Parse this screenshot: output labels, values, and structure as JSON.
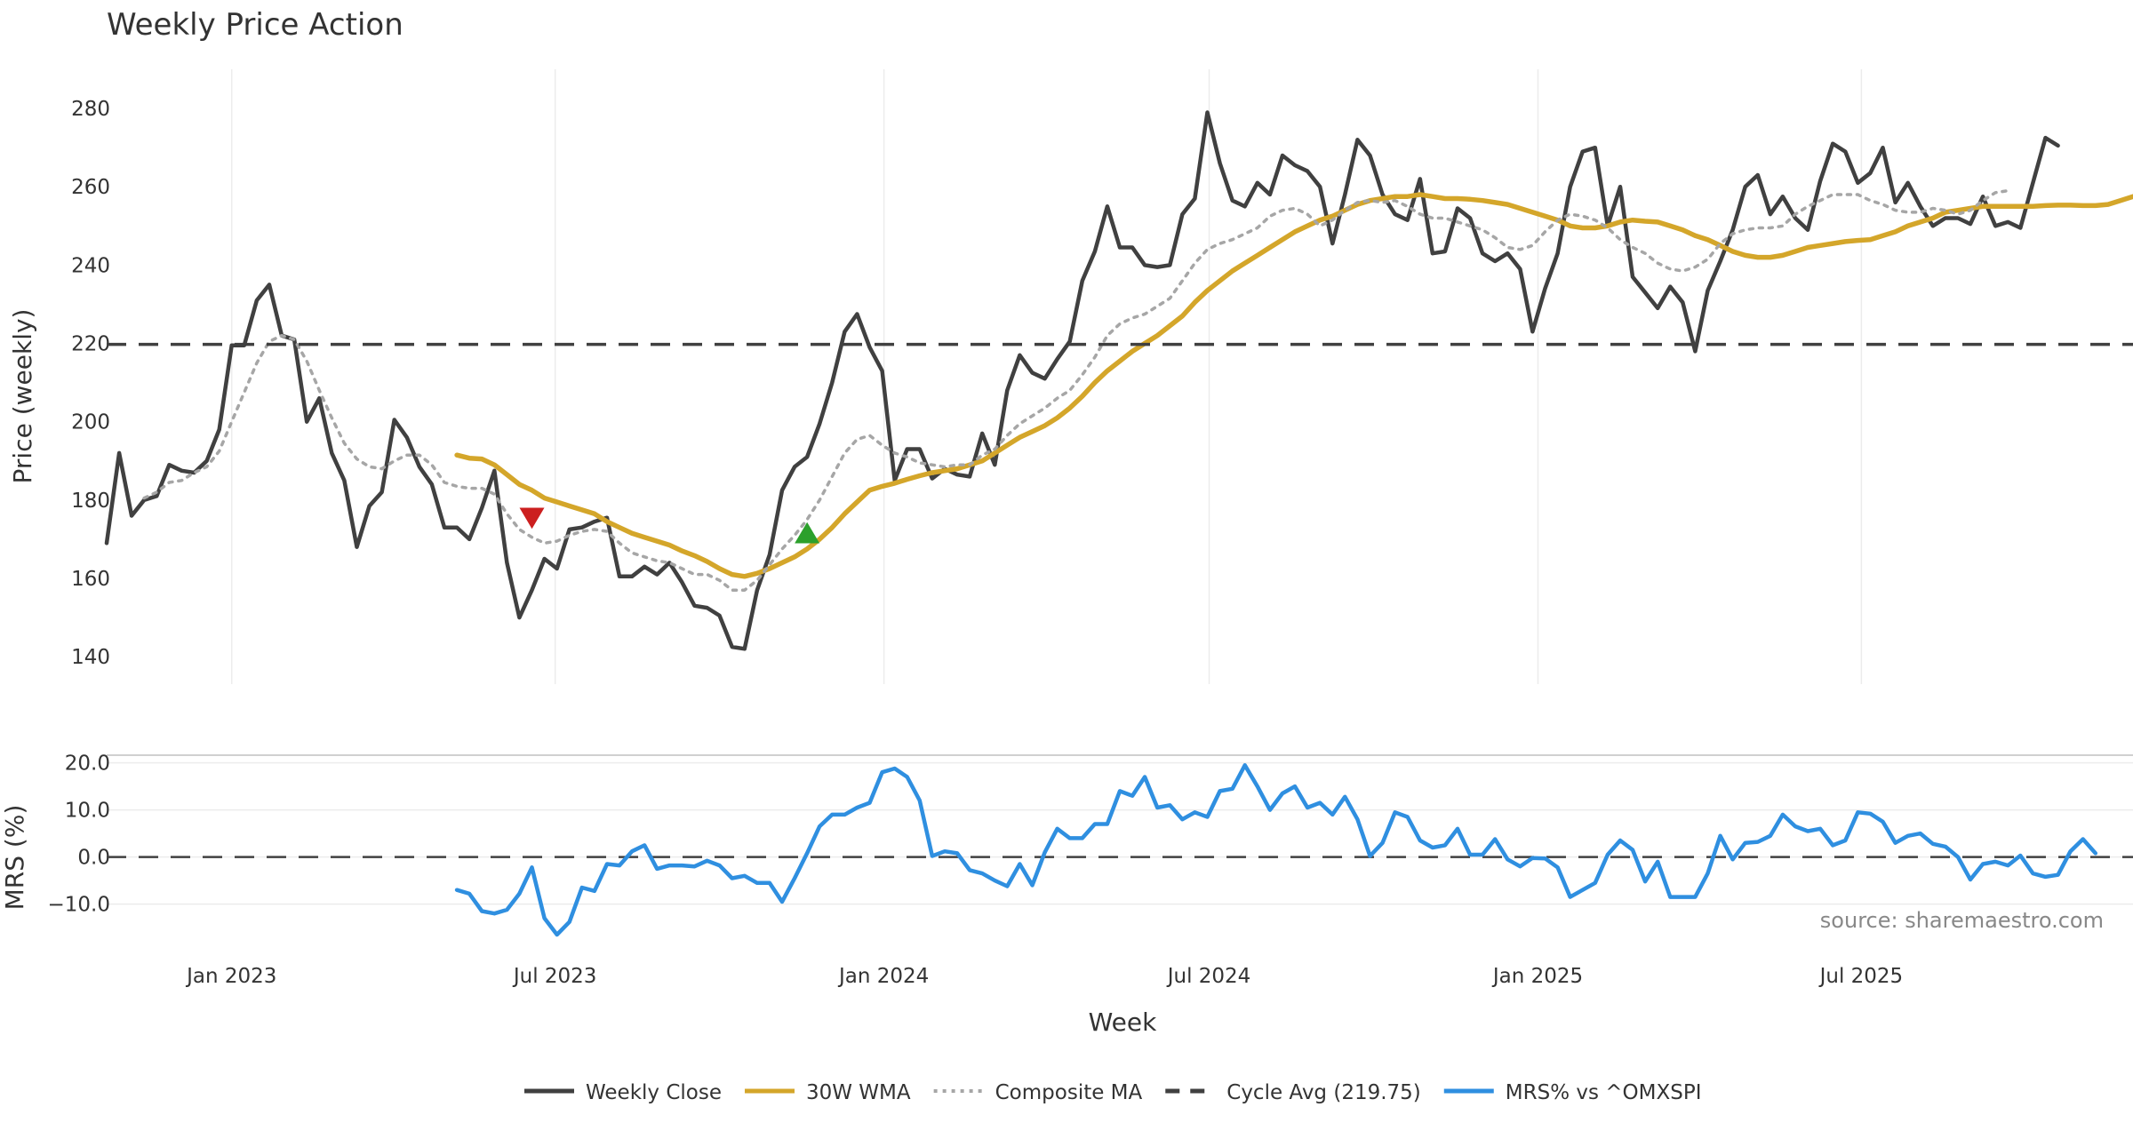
{
  "chart_data": {
    "type": "line",
    "title": "Weekly Price Action",
    "xlabel": "Week",
    "source": "source: sharemaestro.com",
    "x_tick_labels": [
      "Jan 2023",
      "Jul 2023",
      "Jan 2024",
      "Jul 2024",
      "Jan 2025",
      "Jul 2025"
    ],
    "x_tick_dates": [
      "2023-01-01",
      "2023-07-01",
      "2024-01-01",
      "2024-07-01",
      "2025-01-01",
      "2025-07-01"
    ],
    "x_range": [
      "2022-10-23",
      "2025-11-30"
    ],
    "grid": true,
    "legend_position": "bottom",
    "panels": [
      {
        "name": "price",
        "ylabel": "Price (weekly)",
        "ylim": [
          133,
          290
        ],
        "yticks": [
          140,
          160,
          180,
          200,
          220,
          240,
          260,
          280
        ],
        "ytick_labels": [
          "140",
          "160",
          "180",
          "200",
          "220",
          "240",
          "260",
          "280"
        ]
      },
      {
        "name": "mrs",
        "ylabel": "MRS (%)",
        "ylim": [
          -18,
          22
        ],
        "yticks": [
          -10,
          0,
          10,
          20
        ],
        "ytick_labels": [
          "−10.0",
          "0.0",
          "10.0",
          "20.0"
        ]
      }
    ],
    "series": [
      {
        "name": "Weekly Close",
        "panel": "price",
        "color": "#404040",
        "style": "solid",
        "x_start": "2022-10-23",
        "values": [
          169,
          192,
          176,
          180,
          181,
          189,
          187.5,
          187,
          190,
          198,
          219.5,
          219.5,
          231,
          235,
          222,
          221,
          200,
          206,
          192,
          185,
          168,
          178.5,
          182,
          200.5,
          196,
          188.5,
          184,
          173,
          173,
          170,
          178,
          187.5,
          164,
          150,
          157,
          165,
          162.5,
          172.5,
          173,
          174.5,
          175.5,
          160.5,
          160.5,
          163,
          161,
          164,
          159,
          153,
          152.5,
          150.5,
          142.5,
          142,
          157,
          166,
          182.5,
          188.5,
          191,
          199.5,
          210,
          223,
          227.5,
          219,
          213,
          185,
          193,
          193,
          185.5,
          188,
          186.5,
          186,
          197,
          189,
          208,
          217,
          212.5,
          211,
          216,
          220.5,
          236,
          243.5,
          255,
          244.5,
          244.5,
          240,
          239.5,
          240,
          253,
          257,
          279,
          266,
          256.5,
          255,
          261,
          258,
          268,
          265.5,
          264,
          260,
          245.5,
          258,
          272,
          268,
          258,
          253,
          251.5,
          262,
          243,
          243.5,
          254.5,
          252,
          243,
          241,
          243,
          239,
          223,
          234,
          243,
          260,
          269,
          270,
          250,
          260,
          237,
          233,
          229,
          234.5,
          230.5,
          218,
          233.5,
          241,
          249,
          260,
          263,
          253,
          257.5,
          252,
          249,
          261.5,
          271,
          269,
          261,
          263.5,
          270,
          256,
          261,
          255,
          250,
          252,
          252,
          250.5,
          257.5,
          250,
          251,
          249.5,
          261,
          272.5,
          270.5
        ]
      },
      {
        "name": "30W WMA",
        "panel": "price",
        "color": "#d4a62a",
        "style": "solid",
        "x_start": "2023-05-07",
        "values": [
          191.5,
          190.7,
          190.5,
          189,
          186.5,
          184,
          182.5,
          180.5,
          179.5,
          178.5,
          177.5,
          176.5,
          174.5,
          173,
          171.5,
          170.5,
          169.5,
          168.5,
          167,
          165.8,
          164.3,
          162.5,
          161,
          160.5,
          161.3,
          162.5,
          164,
          165.5,
          167.5,
          170,
          173,
          176.5,
          179.5,
          182.5,
          183.5,
          184.3,
          185.3,
          186.2,
          187,
          187.5,
          188,
          189,
          190,
          192,
          194,
          196,
          197.5,
          199,
          201,
          203.5,
          206.5,
          210,
          213,
          215.5,
          218,
          220,
          222,
          224.5,
          227,
          230.5,
          233.5,
          236,
          238.5,
          240.5,
          242.5,
          244.5,
          246.5,
          248.5,
          250,
          251.5,
          252.5,
          254,
          255.5,
          256.5,
          257,
          257.5,
          257.5,
          258,
          257.5,
          257,
          257,
          256.8,
          256.5,
          256,
          255.5,
          254.5,
          253.5,
          252.5,
          251.5,
          250,
          249.5,
          249.5,
          250,
          251,
          251.5,
          251.2,
          251,
          250,
          249,
          247.5,
          246.5,
          245,
          243.5,
          242.5,
          242,
          242,
          242.5,
          243.5,
          244.5,
          245,
          245.5,
          246,
          246.3,
          246.5,
          247.5,
          248.5,
          250,
          251,
          252,
          253.5,
          254,
          254.5,
          255,
          255,
          255,
          255,
          255,
          255.2,
          255.3,
          255.3,
          255.2,
          255.2,
          255.5,
          256.5,
          257.5,
          258.5
        ]
      },
      {
        "name": "Composite MA",
        "panel": "price",
        "color": "#a6a6a6",
        "style": "dotted",
        "x_start": "2022-10-23",
        "values": [
          null,
          null,
          null,
          180.5,
          182,
          184.5,
          185,
          187,
          188.5,
          192.5,
          200,
          207.5,
          215,
          220.5,
          222,
          221,
          215.5,
          208,
          201,
          194.5,
          190.5,
          188.5,
          188,
          190,
          191.5,
          191.5,
          189,
          184.5,
          183.5,
          183,
          183,
          181.5,
          176.5,
          172.5,
          170.5,
          169,
          169.5,
          171,
          172,
          172.5,
          172,
          169,
          166.5,
          165.5,
          164.5,
          164,
          162.5,
          161,
          161,
          159.5,
          157,
          157,
          159.5,
          163.5,
          167.5,
          171,
          175,
          180,
          186,
          192,
          195.5,
          196.5,
          194,
          192,
          191,
          189.5,
          189,
          188.5,
          189,
          189,
          191.5,
          193,
          196.5,
          199.5,
          201.5,
          203.5,
          206,
          208,
          212,
          216.5,
          222,
          225,
          226.5,
          227.5,
          229.5,
          231.5,
          236,
          240.5,
          244,
          245.5,
          246.5,
          248,
          249.5,
          252.5,
          254,
          254.5,
          253,
          250,
          251.5,
          254,
          256,
          256.5,
          256,
          256.5,
          255,
          253,
          252,
          252,
          251,
          250,
          249,
          247,
          244.5,
          244,
          245,
          248.5,
          251.5,
          253,
          252.5,
          251.5,
          249.5,
          246.5,
          244.5,
          243,
          240.5,
          239,
          238.5,
          239.5,
          241.5,
          245.5,
          248,
          249,
          249.5,
          249.5,
          250,
          253,
          255,
          256.5,
          258,
          258,
          258,
          256.5,
          255.5,
          254,
          253.5,
          253.5,
          254.5,
          254,
          253,
          254,
          256.5,
          258.5,
          259
        ]
      },
      {
        "name": "Cycle Avg (219.75)",
        "panel": "price",
        "color": "#404040",
        "style": "dashed",
        "value": 219.75
      },
      {
        "name": "MRS% vs ^OMXSPI",
        "panel": "mrs",
        "color": "#2f8fe0",
        "style": "solid",
        "x_start": "2023-05-07",
        "values": [
          -7,
          -7.8,
          -11.5,
          -12,
          -11.2,
          -7.8,
          -2.2,
          -13,
          -16.5,
          -13.8,
          -6.5,
          -7.2,
          -1.5,
          -1.8,
          1.2,
          2.5,
          -2.5,
          -1.8,
          -1.8,
          -2,
          -0.8,
          -1.8,
          -4.5,
          -4,
          -5.5,
          -5.5,
          -9.5,
          -4.5,
          0.8,
          6.5,
          9,
          9,
          10.5,
          11.5,
          18,
          18.8,
          17,
          12,
          0.2,
          1.2,
          0.8,
          -2.8,
          -3.5,
          -5,
          -6.2,
          -1.5,
          -6,
          1,
          6,
          4,
          4,
          7,
          7,
          14,
          13,
          17,
          10.5,
          11,
          8,
          9.5,
          8.5,
          14,
          14.5,
          19.5,
          15,
          10,
          13.5,
          15,
          10.5,
          11.5,
          9,
          12.8,
          8,
          0.2,
          3,
          9.5,
          8.5,
          3.5,
          2,
          2.5,
          6,
          0.5,
          0.5,
          3.8,
          -0.5,
          -2,
          -0.2,
          -0.3,
          -2.2,
          -8.5,
          -7,
          -5.5,
          0.5,
          3.5,
          1.5,
          -5.2,
          -1,
          -8.5,
          -8.5,
          -8.5,
          -3.5,
          4.5,
          -0.5,
          3,
          3.2,
          4.5,
          9,
          6.5,
          5.5,
          6,
          2.5,
          3.5,
          9.5,
          9.2,
          7.5,
          3,
          4.5,
          5,
          2.8,
          2.2,
          0,
          -4.8,
          -1.5,
          -1,
          -1.8,
          0.3,
          -3.5,
          -4.2,
          -3.8,
          1.2,
          3.8,
          0.8
        ]
      }
    ],
    "reference_lines": [
      {
        "panel": "mrs",
        "value": 0,
        "style": "dashed",
        "color": "#404040"
      }
    ],
    "markers": [
      {
        "type": "sell",
        "shape": "triangle-down",
        "color": "#cc1f1f",
        "date": "2023-06-18",
        "y": 175.5
      },
      {
        "type": "buy",
        "shape": "triangle-up",
        "color": "#2ca02c",
        "date": "2023-11-19",
        "y": 171.5
      }
    ],
    "legend": [
      {
        "label": "Weekly Close",
        "color": "#404040",
        "style": "solid"
      },
      {
        "label": "30W WMA",
        "color": "#d4a62a",
        "style": "solid"
      },
      {
        "label": "Composite MA",
        "color": "#a6a6a6",
        "style": "dotted"
      },
      {
        "label": "Cycle Avg (219.75)",
        "color": "#404040",
        "style": "dashed"
      },
      {
        "label": "MRS% vs ^OMXSPI",
        "color": "#2f8fe0",
        "style": "solid"
      }
    ]
  }
}
